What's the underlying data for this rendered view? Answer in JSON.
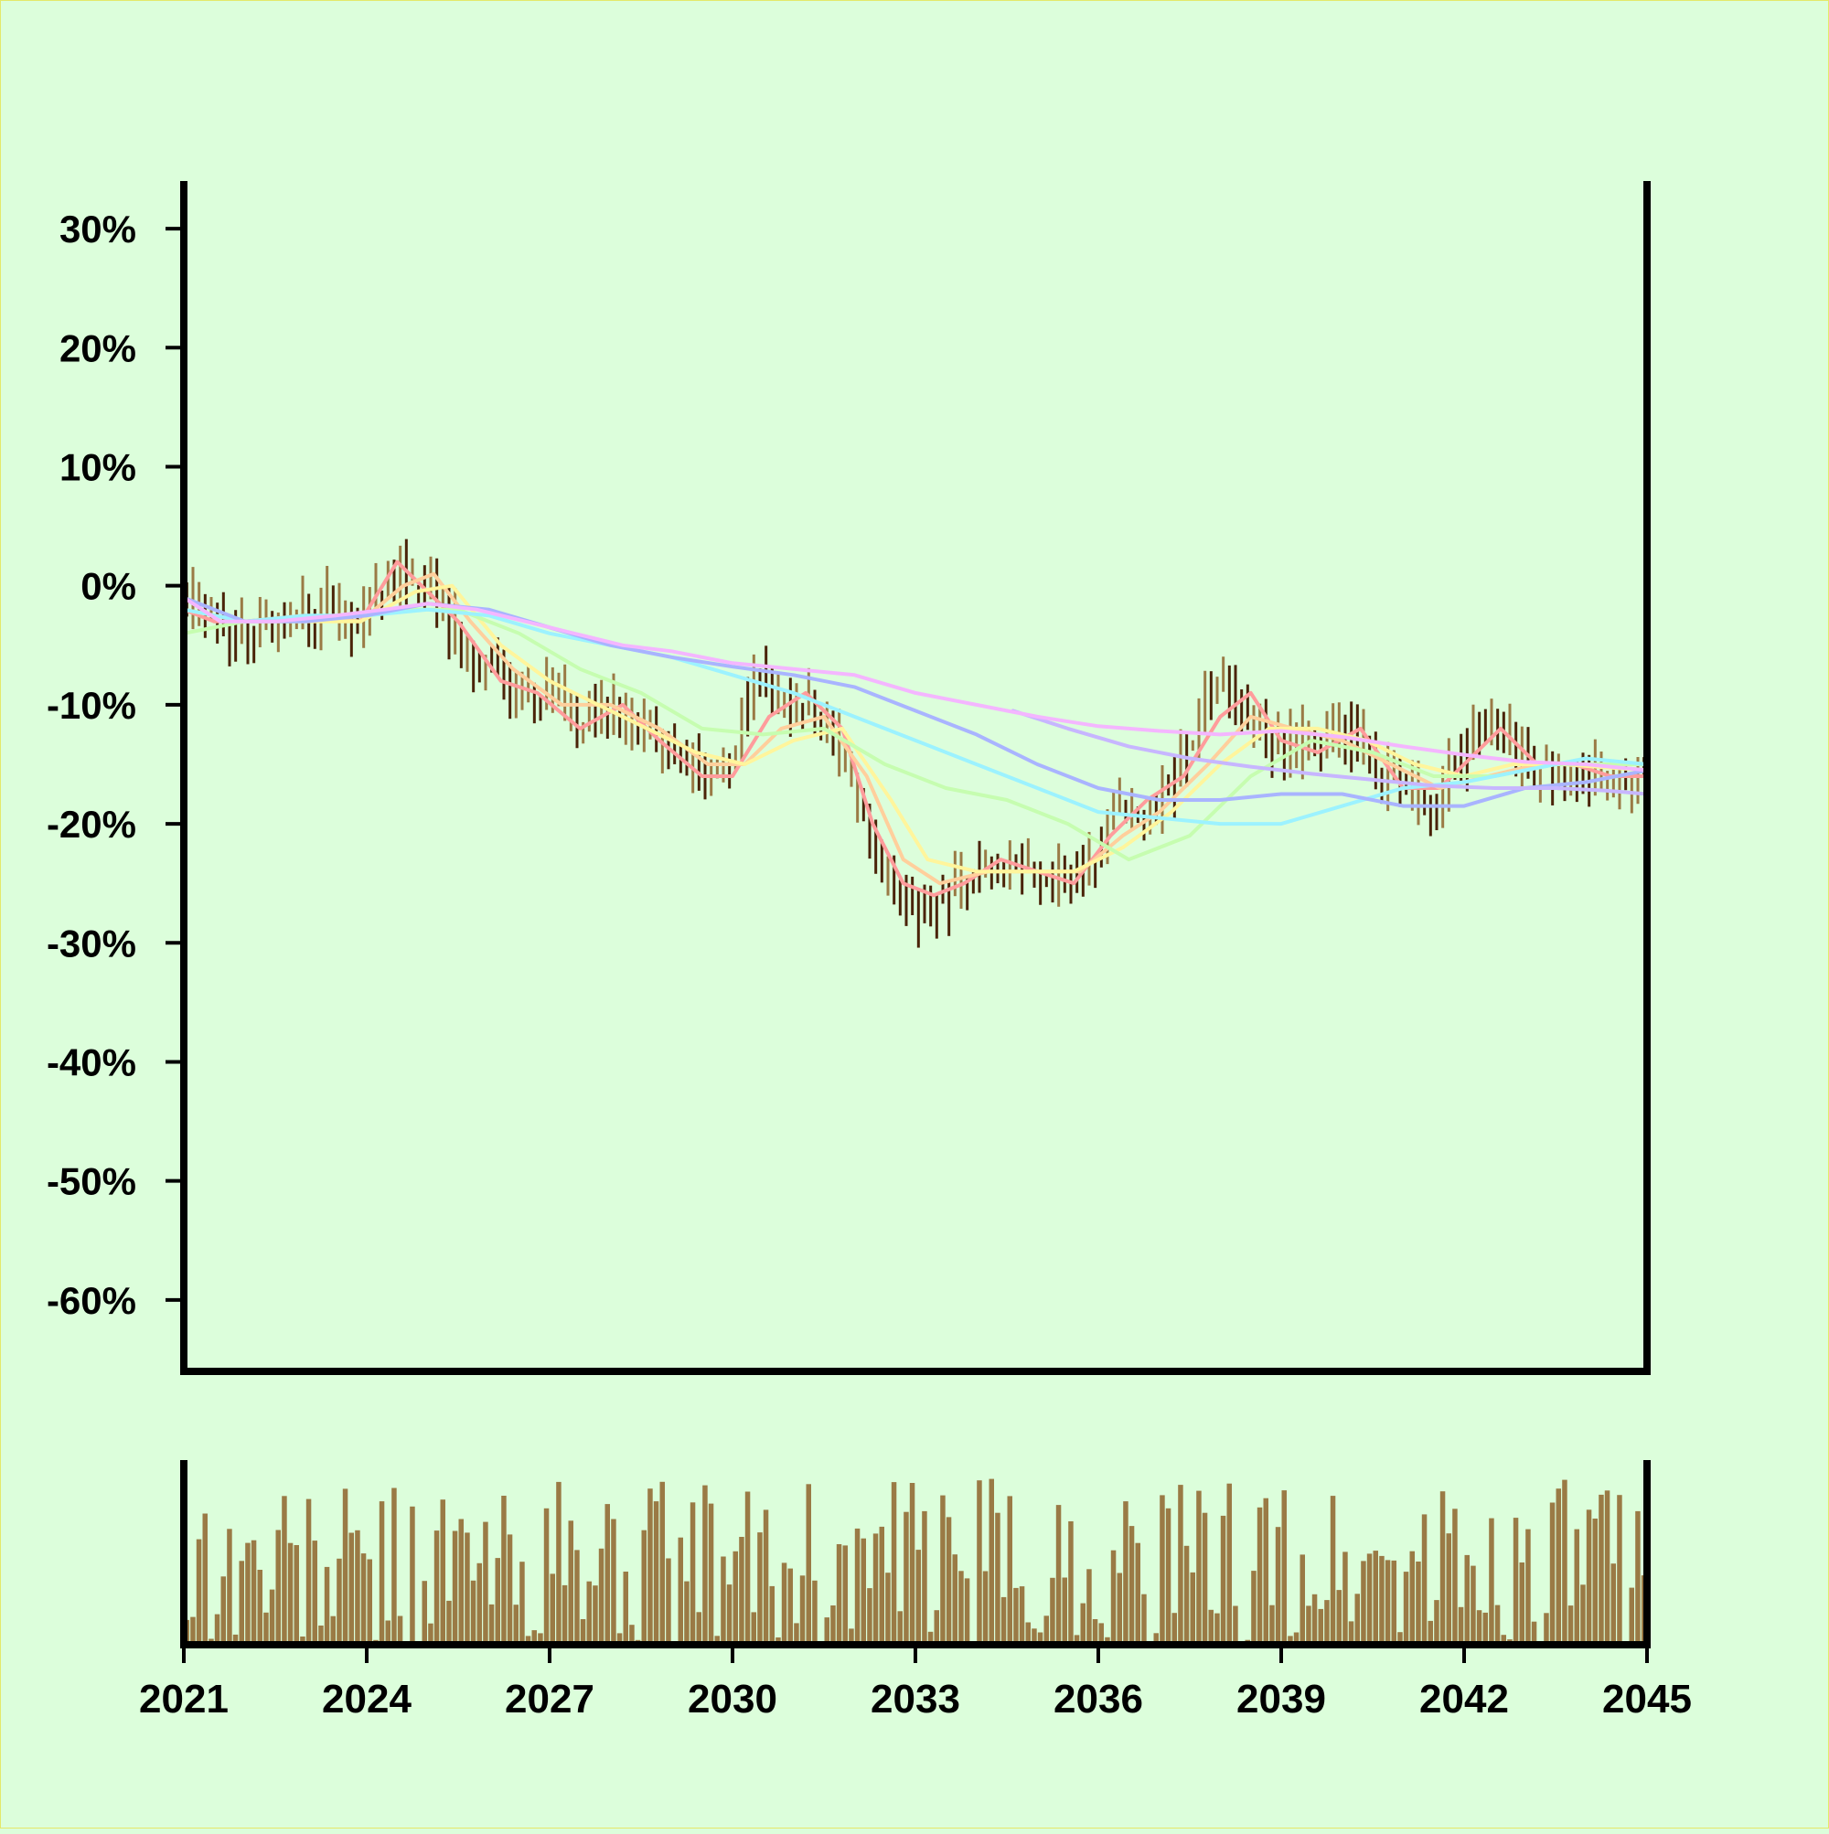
{
  "chart_data": {
    "type": "ohlc",
    "title": "",
    "xlabel": "",
    "ylabel": "",
    "x_range": [
      2021,
      2045
    ],
    "x_ticks": [
      "2021",
      "2024",
      "2027",
      "2030",
      "2033",
      "2036",
      "2039",
      "2042",
      "2045"
    ],
    "y_range": [
      -66,
      34
    ],
    "y_ticks": [
      "30%",
      "20%",
      "10%",
      "0%",
      "-10%",
      "-20%",
      "-30%",
      "-40%",
      "-50%",
      "-60%"
    ],
    "y_tick_values": [
      30,
      20,
      10,
      0,
      -10,
      -20,
      -30,
      -40,
      -50,
      -60
    ],
    "grid": false,
    "price_anchors": [
      [
        2021.0,
        -1
      ],
      [
        2021.4,
        -3
      ],
      [
        2021.8,
        -4
      ],
      [
        2022.3,
        -3
      ],
      [
        2022.8,
        -3
      ],
      [
        2023.3,
        -2
      ],
      [
        2023.8,
        -3
      ],
      [
        2024.1,
        -2
      ],
      [
        2024.5,
        2
      ],
      [
        2024.8,
        0
      ],
      [
        2025.2,
        -1
      ],
      [
        2025.6,
        -5
      ],
      [
        2026.0,
        -7
      ],
      [
        2026.5,
        -9
      ],
      [
        2027.0,
        -9
      ],
      [
        2027.5,
        -11
      ],
      [
        2028.0,
        -10
      ],
      [
        2028.5,
        -12
      ],
      [
        2029.0,
        -14
      ],
      [
        2029.5,
        -16
      ],
      [
        2030.0,
        -15
      ],
      [
        2030.4,
        -7
      ],
      [
        2030.8,
        -10
      ],
      [
        2031.3,
        -10
      ],
      [
        2031.7,
        -13
      ],
      [
        2032.0,
        -17
      ],
      [
        2032.3,
        -22
      ],
      [
        2032.7,
        -25
      ],
      [
        2033.0,
        -27
      ],
      [
        2033.5,
        -26
      ],
      [
        2034.0,
        -24
      ],
      [
        2034.5,
        -23
      ],
      [
        2035.0,
        -24
      ],
      [
        2035.5,
        -25
      ],
      [
        2035.9,
        -23
      ],
      [
        2036.3,
        -18
      ],
      [
        2036.8,
        -20
      ],
      [
        2037.2,
        -17
      ],
      [
        2037.6,
        -12
      ],
      [
        2038.0,
        -7
      ],
      [
        2038.2,
        -9
      ],
      [
        2038.6,
        -12
      ],
      [
        2039.0,
        -14
      ],
      [
        2039.4,
        -13
      ],
      [
        2039.8,
        -13
      ],
      [
        2040.2,
        -12
      ],
      [
        2040.6,
        -16
      ],
      [
        2041.0,
        -17
      ],
      [
        2041.5,
        -18
      ],
      [
        2042.0,
        -14
      ],
      [
        2042.4,
        -11
      ],
      [
        2042.8,
        -14
      ],
      [
        2043.2,
        -15
      ],
      [
        2043.6,
        -16
      ],
      [
        2044.0,
        -16
      ],
      [
        2044.5,
        -17
      ],
      [
        2045.0,
        -16
      ]
    ],
    "moving_averages": [
      {
        "color": "#ff9c9c",
        "points": [
          [
            2021,
            -2
          ],
          [
            2021.5,
            -3
          ],
          [
            2022,
            -3
          ],
          [
            2023,
            -2.5
          ],
          [
            2023.9,
            -3
          ],
          [
            2024.5,
            2
          ],
          [
            2024.9,
            0
          ],
          [
            2025.5,
            -3
          ],
          [
            2026.2,
            -8
          ],
          [
            2026.8,
            -9
          ],
          [
            2027.5,
            -12
          ],
          [
            2028.2,
            -10
          ],
          [
            2028.8,
            -13
          ],
          [
            2029.5,
            -16
          ],
          [
            2030,
            -16
          ],
          [
            2030.6,
            -11
          ],
          [
            2031.2,
            -9
          ],
          [
            2031.8,
            -12
          ],
          [
            2032.3,
            -20
          ],
          [
            2032.8,
            -25
          ],
          [
            2033.3,
            -26
          ],
          [
            2033.8,
            -25
          ],
          [
            2034.4,
            -23
          ],
          [
            2035,
            -24
          ],
          [
            2035.6,
            -25
          ],
          [
            2036.2,
            -21
          ],
          [
            2036.8,
            -18
          ],
          [
            2037.4,
            -16
          ],
          [
            2038,
            -11
          ],
          [
            2038.5,
            -9
          ],
          [
            2039,
            -13
          ],
          [
            2039.6,
            -14
          ],
          [
            2040.3,
            -12
          ],
          [
            2041,
            -17
          ],
          [
            2041.6,
            -17
          ],
          [
            2042.2,
            -14
          ],
          [
            2042.6,
            -12
          ],
          [
            2043.2,
            -15
          ],
          [
            2043.8,
            -15
          ],
          [
            2044.4,
            -16
          ],
          [
            2045,
            -16
          ]
        ]
      },
      {
        "color": "#ffcf9c",
        "points": [
          [
            2021,
            -2
          ],
          [
            2022,
            -3
          ],
          [
            2023,
            -2.5
          ],
          [
            2023.9,
            -3
          ],
          [
            2024.6,
            0
          ],
          [
            2025.1,
            1
          ],
          [
            2025.7,
            -3
          ],
          [
            2026.4,
            -7
          ],
          [
            2027.2,
            -10
          ],
          [
            2028,
            -10
          ],
          [
            2028.8,
            -12
          ],
          [
            2029.6,
            -15
          ],
          [
            2030.2,
            -15
          ],
          [
            2030.8,
            -12
          ],
          [
            2031.5,
            -11
          ],
          [
            2032.2,
            -16
          ],
          [
            2032.8,
            -23
          ],
          [
            2033.4,
            -25
          ],
          [
            2034.2,
            -24
          ],
          [
            2035,
            -24
          ],
          [
            2035.7,
            -24
          ],
          [
            2036.4,
            -21
          ],
          [
            2037,
            -19
          ],
          [
            2037.8,
            -15
          ],
          [
            2038.5,
            -11
          ],
          [
            2039.2,
            -12
          ],
          [
            2040,
            -13
          ],
          [
            2040.8,
            -15
          ],
          [
            2041.6,
            -17
          ],
          [
            2042.4,
            -16
          ],
          [
            2043.2,
            -15
          ],
          [
            2044,
            -15
          ],
          [
            2045,
            -15.5
          ]
        ]
      },
      {
        "color": "#fff59c",
        "points": [
          [
            2021,
            -2
          ],
          [
            2022,
            -3
          ],
          [
            2023.9,
            -3
          ],
          [
            2024.8,
            -0.5
          ],
          [
            2025.4,
            0
          ],
          [
            2026.2,
            -5
          ],
          [
            2027,
            -8
          ],
          [
            2027.8,
            -10
          ],
          [
            2028.6,
            -12
          ],
          [
            2029.4,
            -14
          ],
          [
            2030.2,
            -15
          ],
          [
            2031,
            -13
          ],
          [
            2031.8,
            -12
          ],
          [
            2032.6,
            -18
          ],
          [
            2033.2,
            -23
          ],
          [
            2034,
            -24
          ],
          [
            2034.8,
            -24
          ],
          [
            2035.6,
            -24
          ],
          [
            2036.4,
            -22
          ],
          [
            2037.2,
            -19
          ],
          [
            2038,
            -15
          ],
          [
            2038.8,
            -12
          ],
          [
            2039.6,
            -12
          ],
          [
            2040.4,
            -13
          ],
          [
            2041.2,
            -15
          ],
          [
            2042,
            -16
          ],
          [
            2042.8,
            -15
          ],
          [
            2043.6,
            -15
          ],
          [
            2045,
            -15.5
          ]
        ]
      },
      {
        "color": "#c6fdb0",
        "points": [
          [
            2021,
            -4
          ],
          [
            2022,
            -3
          ],
          [
            2023.5,
            -2.5
          ],
          [
            2024.5,
            -2
          ],
          [
            2025.5,
            -2
          ],
          [
            2026.5,
            -4
          ],
          [
            2027.5,
            -7
          ],
          [
            2028.5,
            -9
          ],
          [
            2029.5,
            -12
          ],
          [
            2030.5,
            -12.5
          ],
          [
            2031.5,
            -12
          ],
          [
            2032.5,
            -15
          ],
          [
            2033.5,
            -17
          ],
          [
            2034.5,
            -18
          ],
          [
            2035.5,
            -20
          ],
          [
            2036.5,
            -23
          ],
          [
            2037.5,
            -21
          ],
          [
            2038.5,
            -16
          ],
          [
            2039.5,
            -13
          ],
          [
            2040.5,
            -14
          ],
          [
            2041.5,
            -16
          ],
          [
            2042.5,
            -16
          ],
          [
            2043.5,
            -15
          ],
          [
            2045,
            -15
          ]
        ]
      },
      {
        "color": "#9cf2ff",
        "points": [
          [
            2021,
            -2
          ],
          [
            2022,
            -3
          ],
          [
            2023,
            -2.5
          ],
          [
            2024,
            -2.5
          ],
          [
            2025,
            -2
          ],
          [
            2026,
            -2.5
          ],
          [
            2027,
            -4
          ],
          [
            2028,
            -5
          ],
          [
            2029,
            -6
          ],
          [
            2030,
            -7.5
          ],
          [
            2031,
            -9
          ],
          [
            2032,
            -11
          ],
          [
            2033,
            -13
          ],
          [
            2034,
            -15
          ],
          [
            2035,
            -17
          ],
          [
            2036,
            -19
          ],
          [
            2037,
            -19.5
          ],
          [
            2038,
            -20
          ],
          [
            2039,
            -20
          ],
          [
            2040,
            -18.5
          ],
          [
            2041,
            -17
          ],
          [
            2042,
            -16.5
          ],
          [
            2043,
            -15.5
          ],
          [
            2044,
            -14.5
          ],
          [
            2045,
            -15
          ]
        ]
      },
      {
        "color": "#a9b4ff",
        "points": [
          [
            2021,
            -1
          ],
          [
            2022,
            -3
          ],
          [
            2023,
            -3
          ],
          [
            2024,
            -2.5
          ],
          [
            2025,
            -1.5
          ],
          [
            2026,
            -2
          ],
          [
            2027,
            -3.5
          ],
          [
            2028,
            -5
          ],
          [
            2029,
            -6
          ],
          [
            2030,
            -6.8
          ],
          [
            2031,
            -7.5
          ],
          [
            2032,
            -8.5
          ],
          [
            2033,
            -10.5
          ],
          [
            2034,
            -12.5
          ],
          [
            2035,
            -15
          ],
          [
            2036,
            -17
          ],
          [
            2037,
            -18
          ],
          [
            2038,
            -18
          ],
          [
            2039,
            -17.5
          ],
          [
            2040,
            -17.5
          ],
          [
            2041,
            -18.5
          ],
          [
            2042,
            -18.5
          ],
          [
            2043,
            -17
          ],
          [
            2044,
            -16.5
          ],
          [
            2045,
            -15.5
          ]
        ]
      },
      {
        "color": "#c7b6ff",
        "points": [
          [
            2034.6,
            -10.5
          ],
          [
            2035.5,
            -12
          ],
          [
            2036.5,
            -13.5
          ],
          [
            2037.5,
            -14.5
          ],
          [
            2038.5,
            -15.2
          ],
          [
            2039.5,
            -15.8
          ],
          [
            2040.5,
            -16.3
          ],
          [
            2041.5,
            -16.8
          ],
          [
            2042.5,
            -17
          ],
          [
            2043.5,
            -17
          ],
          [
            2044.3,
            -17.2
          ],
          [
            2045,
            -17.5
          ]
        ]
      },
      {
        "color": "#f4b6ff",
        "points": [
          [
            2021,
            -1
          ],
          [
            2021.6,
            -3
          ],
          [
            2022.5,
            -3
          ],
          [
            2023.5,
            -2.5
          ],
          [
            2024.3,
            -2
          ],
          [
            2025,
            -1.5
          ],
          [
            2025.8,
            -2
          ],
          [
            2026.6,
            -3
          ],
          [
            2027.4,
            -4
          ],
          [
            2028.2,
            -5
          ],
          [
            2029,
            -5.5
          ],
          [
            2030,
            -6.5
          ],
          [
            2031,
            -7
          ],
          [
            2032,
            -7.5
          ],
          [
            2033,
            -9
          ],
          [
            2034,
            -10
          ],
          [
            2035,
            -11
          ],
          [
            2036,
            -11.8
          ],
          [
            2037,
            -12.2
          ],
          [
            2038,
            -12.5
          ],
          [
            2039,
            -12.2
          ],
          [
            2040,
            -12.7
          ],
          [
            2041,
            -13.5
          ],
          [
            2042,
            -14.2
          ],
          [
            2043,
            -14.8
          ],
          [
            2044,
            -15
          ],
          [
            2045,
            -15.5
          ]
        ]
      }
    ],
    "series": [
      {
        "kind": "ohlc",
        "up_color": "#9a7a45",
        "down_color": "#4a2308",
        "bars": 240
      },
      {
        "kind": "volume",
        "color": "#9a7a45",
        "bars": 240
      }
    ],
    "colors": {
      "background": "#dcfedb",
      "frame_border": "#e4e86a",
      "axis": "#000000"
    }
  }
}
